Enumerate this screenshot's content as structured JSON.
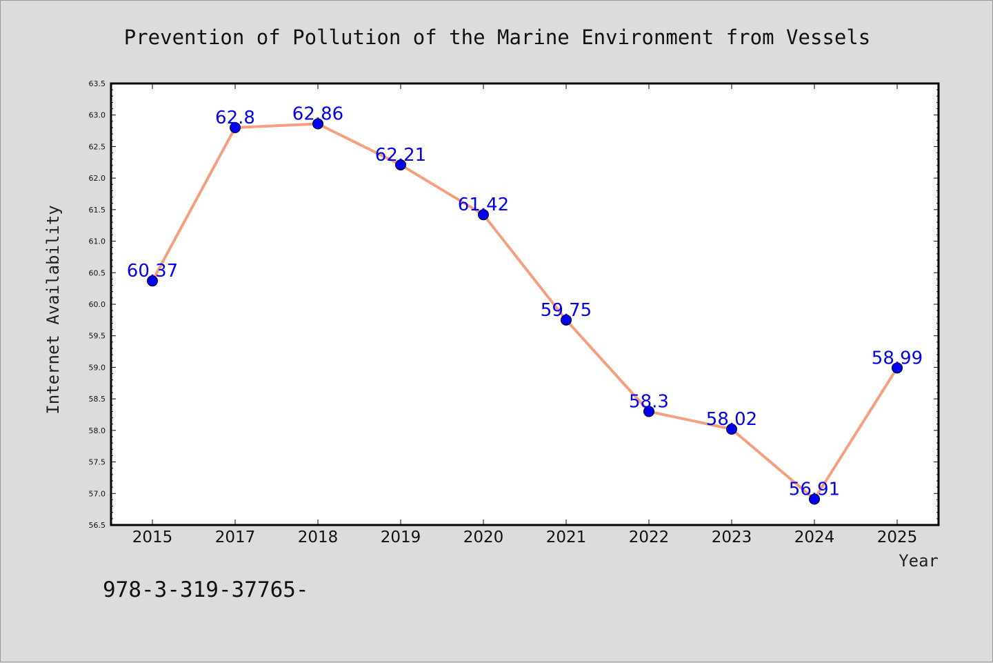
{
  "chart_data": {
    "type": "line",
    "title": "Prevention of Pollution of the Marine Environment from Vessels",
    "xlabel": "Year",
    "ylabel": "Internet Availability",
    "categories": [
      "2015",
      "2017",
      "2018",
      "2019",
      "2020",
      "2021",
      "2022",
      "2023",
      "2024",
      "2025"
    ],
    "series": [
      {
        "values": [
          60.37,
          62.8,
          62.86,
          62.21,
          61.42,
          59.75,
          58.3,
          58.02,
          56.91,
          58.99
        ],
        "labels": [
          "60.37",
          "62.8",
          "62.86",
          "62.21",
          "61.42",
          "59.75",
          "58.3",
          "58.02",
          "56.91",
          "58.99"
        ],
        "line_color": "#f4a07e",
        "marker_color": "#0000ee"
      }
    ],
    "ylim": [
      56.5,
      63.5
    ],
    "yticks": [
      "56.5",
      "57.0",
      "57.5",
      "58.0",
      "58.5",
      "59.0",
      "59.5",
      "60.0",
      "60.5",
      "61.0",
      "61.5",
      "62.0",
      "62.5",
      "63.0",
      "63.5"
    ],
    "grid": false,
    "legend": "none"
  },
  "footnote": "978-3-319-37765-"
}
